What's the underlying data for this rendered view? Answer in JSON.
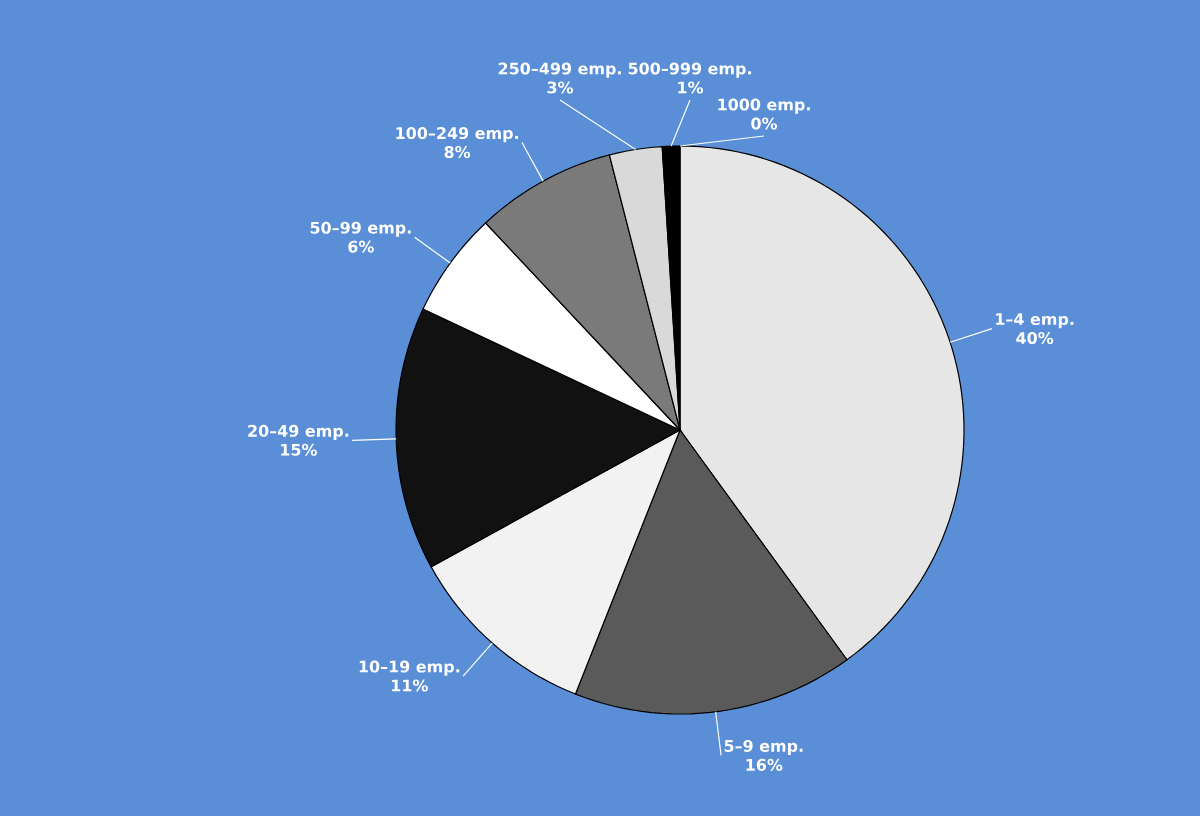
{
  "chart_data": {
    "type": "pie",
    "categories": [
      "1–4 emp.",
      "5–9 emp.",
      "10–19 emp.",
      "20–49 emp.",
      "50–99 emp.",
      "100–249 emp.",
      "250–499 emp.",
      "500–999 emp.",
      "1000 emp."
    ],
    "values": [
      40,
      16,
      11,
      15,
      6,
      8,
      3,
      1,
      0
    ],
    "value_labels": [
      "40%",
      "16%",
      "11%",
      "15%",
      "6%",
      "8%",
      "3%",
      "1%",
      "0%"
    ],
    "colors": [
      "#e6e6e6",
      "#5a5a5a",
      "#f2f2f2",
      "#111111",
      "#ffffff",
      "#7a7a7a",
      "#d9d9d9",
      "#000000",
      "#ffffff"
    ]
  }
}
